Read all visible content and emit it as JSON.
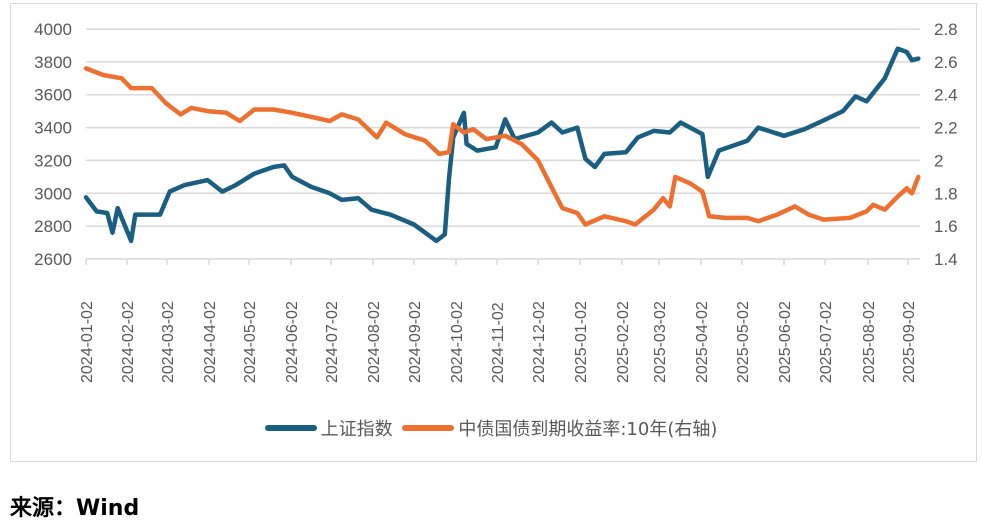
{
  "chart_data": {
    "type": "line",
    "title": "",
    "x_tick_labels": [
      "2024-01-02",
      "2024-02-02",
      "2024-03-02",
      "2024-04-02",
      "2024-05-02",
      "2024-06-02",
      "2024-07-02",
      "2024-08-02",
      "2024-09-02",
      "2024-10-02",
      "2024-11-02",
      "2024-12-02",
      "2025-01-02",
      "2025-02-02",
      "2025-03-02",
      "2025-04-02",
      "2025-05-02",
      "2025-06-02",
      "2025-07-02",
      "2025-08-02",
      "2025-09-02"
    ],
    "y_left": {
      "ticks": [
        2600,
        2800,
        3000,
        3200,
        3400,
        3600,
        3800,
        4000
      ],
      "range": [
        2600,
        4000
      ]
    },
    "y_right": {
      "ticks": [
        1.4,
        1.6,
        1.8,
        2,
        2.2,
        2.4,
        2.6,
        2.8
      ],
      "range": [
        1.4,
        2.8
      ]
    },
    "grid": true,
    "legend_position": "bottom",
    "series": [
      {
        "name": "上证指数",
        "axis": "left",
        "color": "#1a5f82",
        "points": [
          [
            "2024-01-02",
            2975
          ],
          [
            "2024-01-10",
            2890
          ],
          [
            "2024-01-18",
            2880
          ],
          [
            "2024-01-22",
            2760
          ],
          [
            "2024-01-26",
            2910
          ],
          [
            "2024-02-05",
            2710
          ],
          [
            "2024-02-08",
            2870
          ],
          [
            "2024-02-26",
            2870
          ],
          [
            "2024-03-04",
            3010
          ],
          [
            "2024-03-15",
            3050
          ],
          [
            "2024-04-01",
            3080
          ],
          [
            "2024-04-12",
            3010
          ],
          [
            "2024-04-22",
            3050
          ],
          [
            "2024-05-06",
            3120
          ],
          [
            "2024-05-20",
            3160
          ],
          [
            "2024-05-28",
            3170
          ],
          [
            "2024-06-03",
            3100
          ],
          [
            "2024-06-17",
            3040
          ],
          [
            "2024-07-01",
            3000
          ],
          [
            "2024-07-10",
            2960
          ],
          [
            "2024-07-22",
            2970
          ],
          [
            "2024-08-01",
            2900
          ],
          [
            "2024-08-15",
            2870
          ],
          [
            "2024-09-02",
            2810
          ],
          [
            "2024-09-18",
            2710
          ],
          [
            "2024-09-24",
            2750
          ],
          [
            "2024-09-27",
            3090
          ],
          [
            "2024-09-30",
            3340
          ],
          [
            "2024-10-08",
            3490
          ],
          [
            "2024-10-10",
            3300
          ],
          [
            "2024-10-18",
            3260
          ],
          [
            "2024-11-01",
            3280
          ],
          [
            "2024-11-08",
            3450
          ],
          [
            "2024-11-15",
            3330
          ],
          [
            "2024-12-02",
            3370
          ],
          [
            "2024-12-12",
            3430
          ],
          [
            "2024-12-20",
            3370
          ],
          [
            "2024-12-31",
            3400
          ],
          [
            "2025-01-06",
            3210
          ],
          [
            "2025-01-13",
            3160
          ],
          [
            "2025-01-20",
            3240
          ],
          [
            "2025-02-05",
            3250
          ],
          [
            "2025-02-14",
            3340
          ],
          [
            "2025-02-26",
            3380
          ],
          [
            "2025-03-10",
            3370
          ],
          [
            "2025-03-18",
            3430
          ],
          [
            "2025-04-03",
            3360
          ],
          [
            "2025-04-07",
            3100
          ],
          [
            "2025-04-15",
            3260
          ],
          [
            "2025-05-06",
            3320
          ],
          [
            "2025-05-14",
            3400
          ],
          [
            "2025-06-02",
            3350
          ],
          [
            "2025-06-17",
            3390
          ],
          [
            "2025-06-30",
            3440
          ],
          [
            "2025-07-15",
            3500
          ],
          [
            "2025-07-24",
            3590
          ],
          [
            "2025-08-01",
            3560
          ],
          [
            "2025-08-15",
            3700
          ],
          [
            "2025-08-25",
            3880
          ],
          [
            "2025-09-01",
            3860
          ],
          [
            "2025-09-05",
            3810
          ],
          [
            "2025-09-10",
            3820
          ]
        ]
      },
      {
        "name": "中债国债到期收益率:10年(右轴)",
        "axis": "right",
        "color": "#ed7031",
        "points": [
          [
            "2024-01-02",
            2.56
          ],
          [
            "2024-01-15",
            2.52
          ],
          [
            "2024-01-29",
            2.5
          ],
          [
            "2024-02-05",
            2.44
          ],
          [
            "2024-02-20",
            2.44
          ],
          [
            "2024-03-01",
            2.35
          ],
          [
            "2024-03-12",
            2.28
          ],
          [
            "2024-03-20",
            2.32
          ],
          [
            "2024-04-01",
            2.3
          ],
          [
            "2024-04-15",
            2.29
          ],
          [
            "2024-04-25",
            2.24
          ],
          [
            "2024-05-06",
            2.31
          ],
          [
            "2024-05-20",
            2.31
          ],
          [
            "2024-06-03",
            2.29
          ],
          [
            "2024-06-20",
            2.26
          ],
          [
            "2024-07-01",
            2.24
          ],
          [
            "2024-07-10",
            2.28
          ],
          [
            "2024-07-22",
            2.25
          ],
          [
            "2024-08-05",
            2.14
          ],
          [
            "2024-08-12",
            2.23
          ],
          [
            "2024-08-26",
            2.16
          ],
          [
            "2024-09-10",
            2.12
          ],
          [
            "2024-09-20",
            2.04
          ],
          [
            "2024-09-27",
            2.05
          ],
          [
            "2024-09-30",
            2.22
          ],
          [
            "2024-10-08",
            2.17
          ],
          [
            "2024-10-15",
            2.19
          ],
          [
            "2024-10-25",
            2.13
          ],
          [
            "2024-11-08",
            2.15
          ],
          [
            "2024-11-20",
            2.1
          ],
          [
            "2024-12-02",
            2.0
          ],
          [
            "2024-12-10",
            1.87
          ],
          [
            "2024-12-20",
            1.71
          ],
          [
            "2024-12-31",
            1.68
          ],
          [
            "2025-01-06",
            1.61
          ],
          [
            "2025-01-20",
            1.66
          ],
          [
            "2025-02-05",
            1.63
          ],
          [
            "2025-02-12",
            1.61
          ],
          [
            "2025-02-26",
            1.7
          ],
          [
            "2025-03-05",
            1.77
          ],
          [
            "2025-03-10",
            1.72
          ],
          [
            "2025-03-14",
            1.9
          ],
          [
            "2025-03-25",
            1.86
          ],
          [
            "2025-04-03",
            1.81
          ],
          [
            "2025-04-08",
            1.66
          ],
          [
            "2025-04-20",
            1.65
          ],
          [
            "2025-05-06",
            1.65
          ],
          [
            "2025-05-14",
            1.63
          ],
          [
            "2025-05-28",
            1.67
          ],
          [
            "2025-06-10",
            1.72
          ],
          [
            "2025-06-20",
            1.67
          ],
          [
            "2025-07-01",
            1.64
          ],
          [
            "2025-07-20",
            1.65
          ],
          [
            "2025-08-01",
            1.69
          ],
          [
            "2025-08-06",
            1.73
          ],
          [
            "2025-08-15",
            1.7
          ],
          [
            "2025-08-25",
            1.78
          ],
          [
            "2025-09-01",
            1.83
          ],
          [
            "2025-09-05",
            1.8
          ],
          [
            "2025-09-10",
            1.9
          ]
        ]
      }
    ]
  },
  "legend": [
    "上证指数",
    "中债国债到期收益率:10年(右轴)"
  ],
  "source": "来源：Wind"
}
